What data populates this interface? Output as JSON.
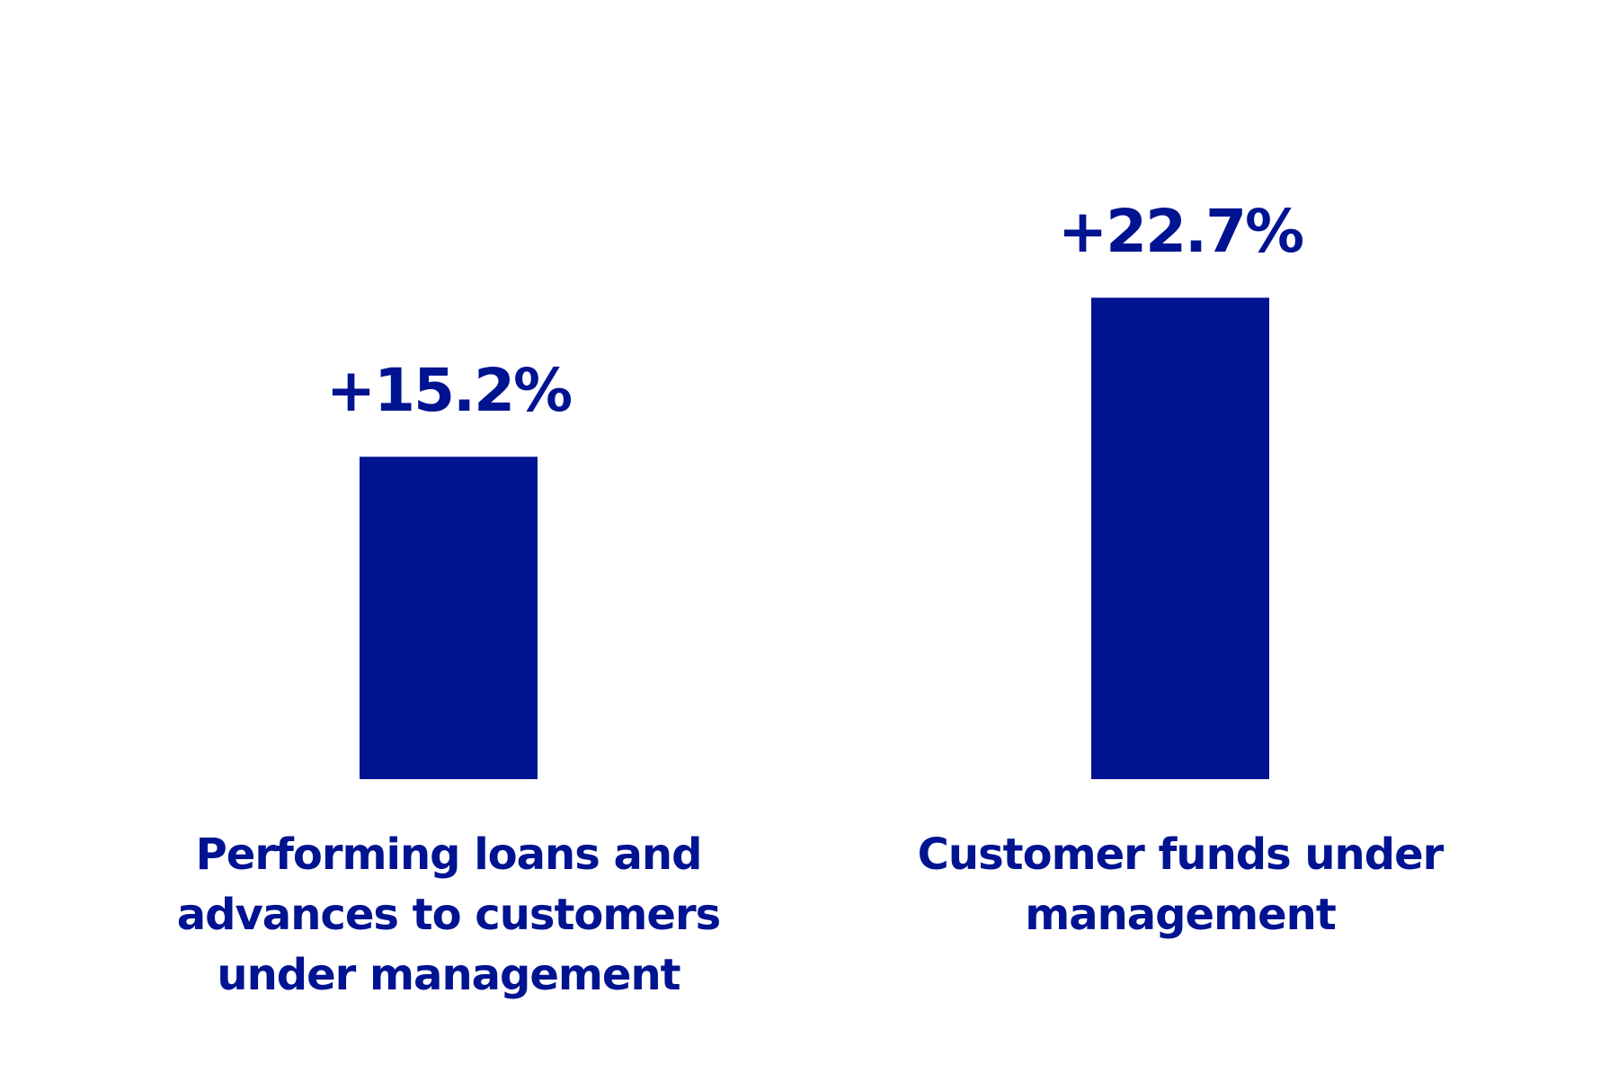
{
  "chart_data": {
    "type": "bar",
    "categories": [
      "Performing loans and advances to customers under management",
      "Customer funds under management"
    ],
    "values": [
      15.2,
      22.7
    ],
    "value_labels": [
      "+15.2%",
      "+22.7%"
    ],
    "color": "#001391"
  }
}
